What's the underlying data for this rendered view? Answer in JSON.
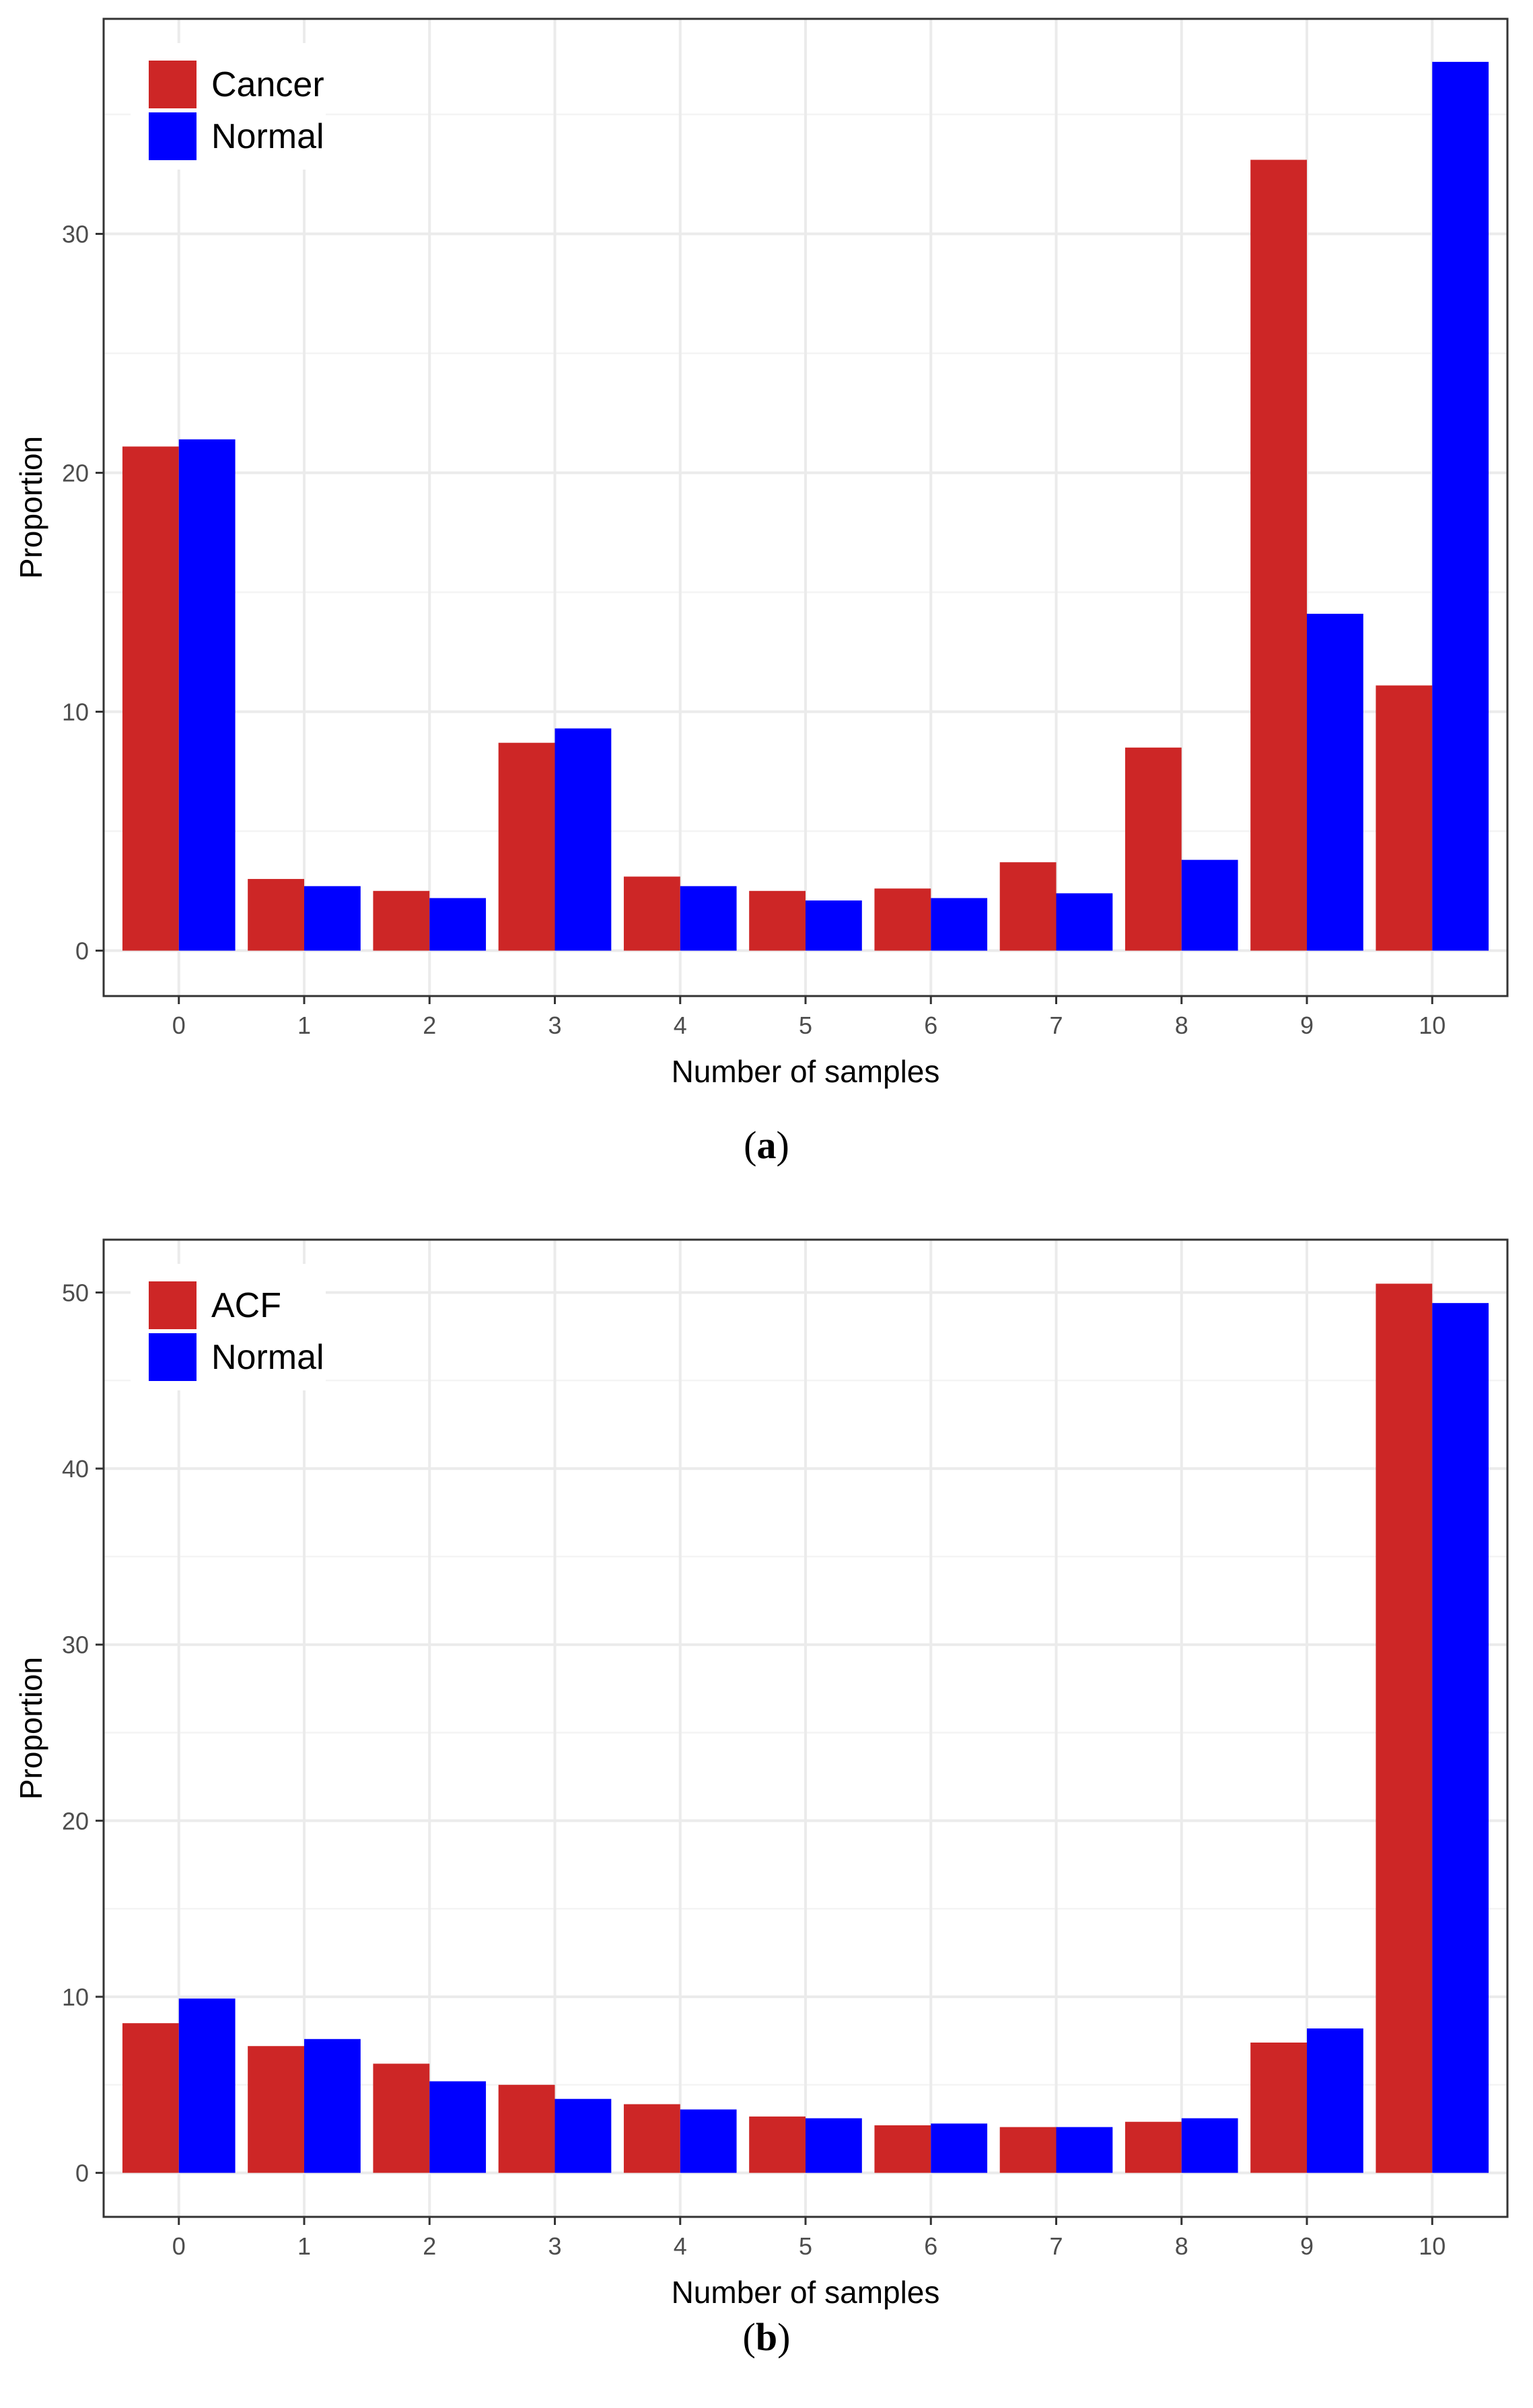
{
  "colors": {
    "series1": "#cd2626",
    "series2": "#0000ff",
    "grid_major": "#ebebeb",
    "grid_minor": "#f4f4f4",
    "panel_border": "#333333",
    "axis_text": "#4d4d4d"
  },
  "chart_data": [
    {
      "type": "bar",
      "panel": "a",
      "caption_letter": "a",
      "xlabel": "Number of samples",
      "ylabel": "Proportion",
      "categories": [
        "0",
        "1",
        "2",
        "3",
        "4",
        "5",
        "6",
        "7",
        "8",
        "9",
        "10"
      ],
      "series": [
        {
          "name": "Cancer",
          "values": [
            21.1,
            3.0,
            2.5,
            8.7,
            3.1,
            2.5,
            2.6,
            3.7,
            8.5,
            33.1,
            11.1
          ]
        },
        {
          "name": "Normal",
          "values": [
            21.4,
            2.7,
            2.2,
            9.3,
            2.7,
            2.1,
            2.2,
            2.4,
            3.8,
            14.1,
            37.2
          ]
        }
      ],
      "ylim": [
        -1.9,
        39.0
      ],
      "yticks": [
        0,
        10,
        20,
        30
      ],
      "ytick_labels": [
        "0",
        "10",
        "20",
        "30"
      ],
      "legend_position": "top-left"
    },
    {
      "type": "bar",
      "panel": "b",
      "caption_letter": "b",
      "xlabel": "Number of samples",
      "ylabel": "Proportion",
      "categories": [
        "0",
        "1",
        "2",
        "3",
        "4",
        "5",
        "6",
        "7",
        "8",
        "9",
        "10"
      ],
      "series": [
        {
          "name": "ACF",
          "values": [
            8.5,
            7.2,
            6.2,
            5.0,
            3.9,
            3.2,
            2.7,
            2.6,
            2.9,
            7.4,
            50.5
          ]
        },
        {
          "name": "Normal",
          "values": [
            9.9,
            7.6,
            5.2,
            4.2,
            3.6,
            3.1,
            2.8,
            2.6,
            3.1,
            8.2,
            49.4
          ]
        }
      ],
      "ylim": [
        -2.5,
        53.0
      ],
      "yticks": [
        0,
        10,
        20,
        30,
        40,
        50
      ],
      "ytick_labels": [
        "0",
        "10",
        "20",
        "30",
        "40",
        "50"
      ],
      "legend_position": "top-left"
    }
  ]
}
